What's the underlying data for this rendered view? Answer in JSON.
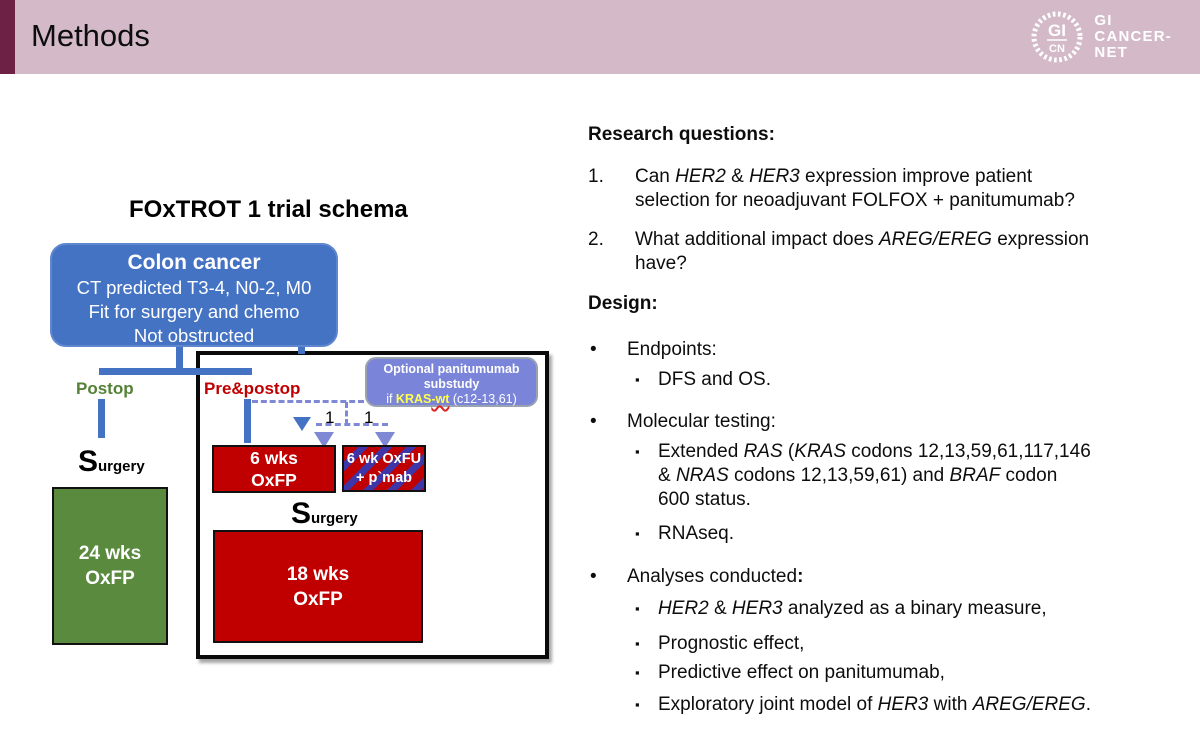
{
  "colors": {
    "header_bg": "#d4bac9",
    "header_stripe": "#6d2145",
    "accent_blue": "#4573c4",
    "periwinkle": "#7e88d5",
    "substudy_fill": "#7a85d9",
    "box_red": "#c00000",
    "stripe_blue": "#3d35a8",
    "green_fill": "#5a8a3e",
    "postop_green": "#538135",
    "prepostop_red": "#c00000",
    "kras_yellow": "#ffff4d"
  },
  "header": {
    "title": "Methods",
    "logo": {
      "emblem_top": "GI",
      "emblem_bottom": "CN",
      "line1": "GI",
      "line2": "CANCER-",
      "line3": "NET"
    }
  },
  "diagram": {
    "title": "FOxTROT 1 trial schema",
    "colon_box": {
      "title": "Colon cancer",
      "line1": "CT predicted T3-4, N0-2, M0",
      "line2": "Fit for surgery and chemo",
      "line3": "Not obstructed"
    },
    "postop_label": "Postop",
    "prepostop_label": "Pre&postop",
    "substudy": {
      "line1": "Optional panitumumab",
      "line2": "substudy",
      "line3": [
        {
          "t": "if "
        },
        {
          "t": "KRAS",
          "b": 1,
          "c": "#ffff4d"
        },
        {
          "t": "-wt",
          "b": 1,
          "c": "#ffff4d",
          "u": 1
        },
        {
          "t": " (c12-13,61)"
        }
      ]
    },
    "rand_left": "1",
    "rand_right": "1",
    "surgery": {
      "big": "S",
      "small": "urgery"
    },
    "green_box": {
      "line1": "24 wks",
      "line2": "OxFP"
    },
    "box_6wks": {
      "line1": "6 wks",
      "line2": "OxFP"
    },
    "box_striped": {
      "line1": "6 wk OxFU",
      "line2": "+ p`mab"
    },
    "box_18wks": {
      "line1": "18 wks",
      "line2": "OxFP"
    }
  },
  "content": {
    "research_heading": "Research questions:",
    "bullet_char": "•",
    "sub_char": "▪",
    "q1_num": "1.",
    "q1": [
      {
        "t": "Can "
      },
      {
        "t": "HER2",
        "i": 1
      },
      {
        "t": " & "
      },
      {
        "t": "HER3",
        "i": 1
      },
      {
        "t": " expression improve patient"
      },
      {
        "br": 1
      },
      {
        "t": "selection for neoadjuvant FOLFOX + panitumumab?"
      }
    ],
    "q2_num": "2.",
    "q2": [
      {
        "t": "What additional impact does "
      },
      {
        "t": "AREG/EREG",
        "i": 1
      },
      {
        "t": " expression"
      },
      {
        "br": 1
      },
      {
        "t": "have?"
      }
    ],
    "design_heading": "Design:",
    "endpoints": "Endpoints:",
    "dfs": "DFS and OS.",
    "molecular": "Molecular testing:",
    "extended": [
      {
        "t": "Extended "
      },
      {
        "t": "RAS",
        "i": 1
      },
      {
        "t": " ("
      },
      {
        "t": "KRAS",
        "i": 1
      },
      {
        "t": " codons 12,13,59,61,117,146"
      },
      {
        "br": 1
      },
      {
        "t": "& "
      },
      {
        "t": "NRAS",
        "i": 1
      },
      {
        "t": " codons 12,13,59,61) and "
      },
      {
        "t": "BRAF",
        "i": 1
      },
      {
        "t": " codon"
      },
      {
        "br": 1
      },
      {
        "t": "600 status."
      }
    ],
    "rnaseq": "RNAseq.",
    "analyses": [
      {
        "t": "Analyses conducted"
      },
      {
        "t": ":",
        "b": 1
      }
    ],
    "a1": [
      {
        "t": "HER2",
        "i": 1
      },
      {
        "t": " & "
      },
      {
        "t": "HER3",
        "i": 1
      },
      {
        "t": " analyzed as a binary measure,"
      }
    ],
    "a2": "Prognostic effect,",
    "a3": "Predictive effect on panitumumab,",
    "a4": [
      {
        "t": "Exploratory joint model of "
      },
      {
        "t": "HER3",
        "i": 1
      },
      {
        "t": " with "
      },
      {
        "t": "AREG/EREG",
        "i": 1
      },
      {
        "t": "."
      }
    ]
  }
}
